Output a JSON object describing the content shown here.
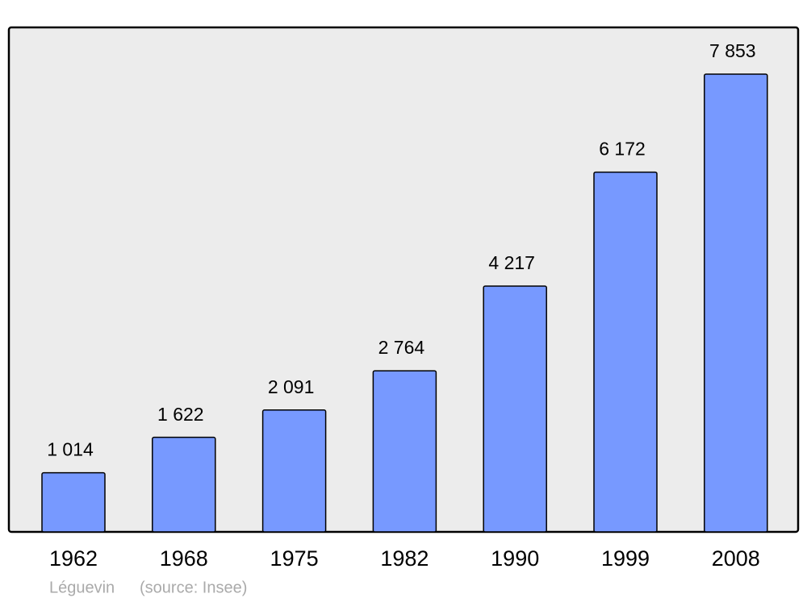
{
  "chart_data": {
    "type": "bar",
    "title": "Léguevin",
    "source": "(source: Insee)",
    "categories": [
      "1962",
      "1968",
      "1975",
      "1982",
      "1990",
      "1999",
      "2008"
    ],
    "values": [
      1014,
      1622,
      2091,
      2764,
      4217,
      6172,
      7853
    ],
    "value_labels": [
      "1 014",
      "1 622",
      "2 091",
      "2 764",
      "4 217",
      "6 172",
      "7 853"
    ],
    "color": "#7799ff"
  }
}
